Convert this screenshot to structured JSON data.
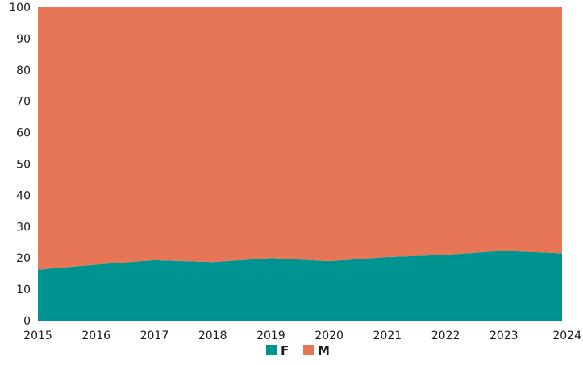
{
  "chart_data": {
    "type": "area",
    "stacked": true,
    "x": [
      "2015",
      "2016",
      "2017",
      "2018",
      "2019",
      "2020",
      "2021",
      "2022",
      "2023",
      "2024"
    ],
    "series": [
      {
        "name": "F",
        "color": "#009490",
        "values": [
          16.3,
          17.9,
          19.3,
          18.7,
          20.0,
          19.0,
          20.3,
          21.0,
          22.3,
          21.5
        ]
      },
      {
        "name": "M",
        "color": "#e67656",
        "values": [
          83.7,
          82.1,
          80.7,
          81.3,
          80.0,
          81.0,
          79.7,
          79.0,
          77.7,
          78.5
        ]
      }
    ],
    "ylim": [
      0,
      100
    ],
    "yticks": [
      "0",
      "10",
      "20",
      "30",
      "40",
      "50",
      "60",
      "70",
      "80",
      "90",
      "100"
    ],
    "grid": false,
    "legend_position": "bottom"
  }
}
